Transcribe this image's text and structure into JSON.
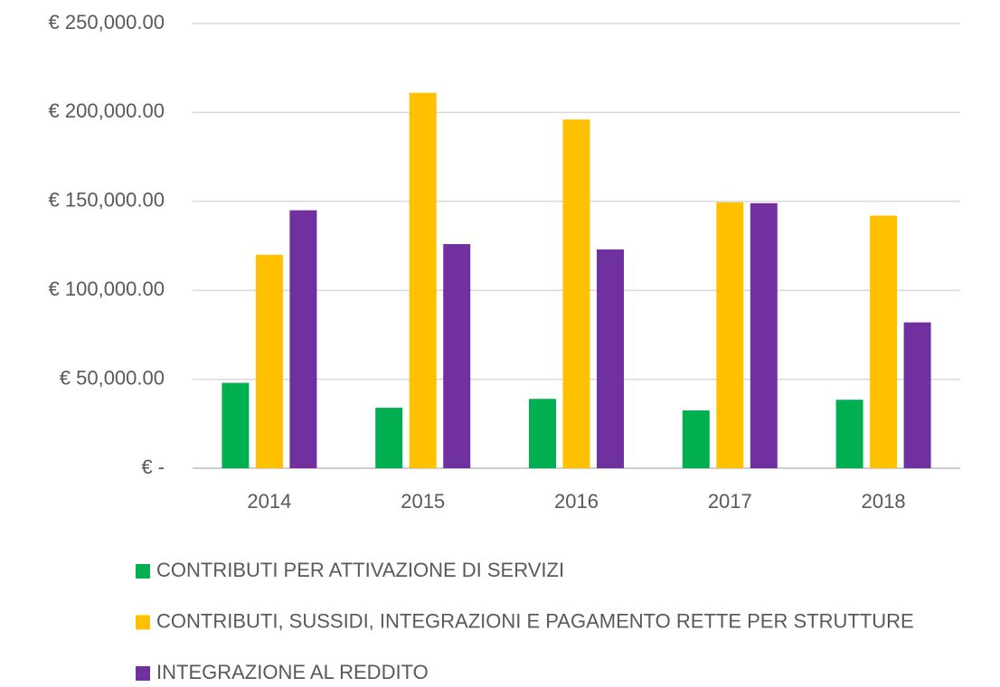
{
  "chart_data": {
    "type": "bar",
    "categories": [
      "2014",
      "2015",
      "2016",
      "2017",
      "2018"
    ],
    "series": [
      {
        "name": "CONTRIBUTI PER ATTIVAZIONE DI SERVIZI",
        "color": "#00b050",
        "values": [
          48000,
          34000,
          39000,
          32500,
          38500
        ]
      },
      {
        "name": "CONTRIBUTI, SUSSIDI, INTEGRAZIONI E PAGAMENTO RETTE PER STRUTTURE",
        "color": "#ffc000",
        "values": [
          120000,
          211000,
          196000,
          149500,
          142000
        ]
      },
      {
        "name": "INTEGRAZIONE AL REDDITO",
        "color": "#7030a0",
        "values": [
          145000,
          126000,
          123000,
          149000,
          82000
        ]
      }
    ],
    "ylim": [
      0,
      250000
    ],
    "yticks": [
      {
        "value": 0,
        "label": "€ -"
      },
      {
        "value": 50000,
        "label": "€ 50,000.00"
      },
      {
        "value": 100000,
        "label": "€ 100,000.00"
      },
      {
        "value": 150000,
        "label": "€ 150,000.00"
      },
      {
        "value": 200000,
        "label": "€ 200,000.00"
      },
      {
        "value": 250000,
        "label": "€ 250,000.00"
      }
    ],
    "grid": true,
    "legend": "bottom"
  }
}
